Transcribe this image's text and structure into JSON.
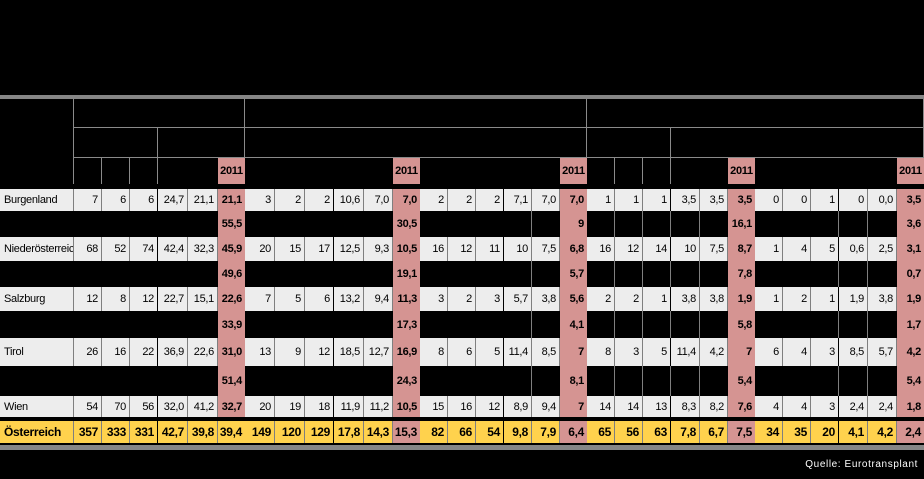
{
  "header": {
    "year_label": "2011",
    "group_count": 5,
    "note": "header captions blacked out in source image"
  },
  "footer": {
    "source": "Quelle: Eurotransplant"
  },
  "colors": {
    "highlight_pink": "#D59492",
    "total_yellow": "#FFD24D",
    "row_light": "#EDEDED",
    "rule_gray": "#868686",
    "grid_gray": "#7f7f7f",
    "background": "#000000"
  },
  "table": {
    "row_labels": [
      "Burgenland",
      "Niederösterreich",
      "Salzburg",
      "Tirol",
      "Wien",
      "Österreich"
    ],
    "rows": [
      {
        "type": "state",
        "label": "Burgenland",
        "values": [
          "7",
          "6",
          "6",
          "24,7",
          "21,1",
          "21,1",
          "3",
          "2",
          "2",
          "10,6",
          "7,0",
          "7,0",
          "2",
          "2",
          "2",
          "7,1",
          "7,0",
          "7,0",
          "1",
          "1",
          "1",
          "3,5",
          "3,5",
          "3,5",
          "0",
          "0",
          "1",
          "0",
          "0,0",
          "3,5"
        ]
      },
      {
        "type": "hidden",
        "label": "",
        "pink_values": [
          "55,5",
          "30,5",
          "9",
          "16,1",
          "3,6"
        ]
      },
      {
        "type": "state",
        "label": "Niederösterreich",
        "values": [
          "68",
          "52",
          "74",
          "42,4",
          "32,3",
          "45,9",
          "20",
          "15",
          "17",
          "12,5",
          "9,3",
          "10,5",
          "16",
          "12",
          "11",
          "10",
          "7,5",
          "6,8",
          "16",
          "12",
          "14",
          "10",
          "7,5",
          "8,7",
          "1",
          "4",
          "5",
          "0,6",
          "2,5",
          "3,1"
        ]
      },
      {
        "type": "hidden",
        "label": "",
        "pink_values": [
          "49,6",
          "19,1",
          "5,7",
          "7,8",
          "0,7"
        ]
      },
      {
        "type": "state",
        "label": "Salzburg",
        "values": [
          "12",
          "8",
          "12",
          "22,7",
          "15,1",
          "22,6",
          "7",
          "5",
          "6",
          "13,2",
          "9,4",
          "11,3",
          "3",
          "2",
          "3",
          "5,7",
          "3,8",
          "5,6",
          "2",
          "2",
          "1",
          "3,8",
          "3,8",
          "1,9",
          "1",
          "2",
          "1",
          "1,9",
          "3,8",
          "1,9"
        ]
      },
      {
        "type": "hidden",
        "label": "",
        "pink_values": [
          "33,9",
          "17,3",
          "4,1",
          "5,8",
          "1,7"
        ]
      },
      {
        "type": "state",
        "label": "Tirol",
        "values": [
          "26",
          "16",
          "22",
          "36,9",
          "22,6",
          "31,0",
          "13",
          "9",
          "12",
          "18,5",
          "12,7",
          "16,9",
          "8",
          "6",
          "5",
          "11,4",
          "8,5",
          "7",
          "8",
          "3",
          "5",
          "11,4",
          "4,2",
          "7",
          "6",
          "4",
          "3",
          "8,5",
          "5,7",
          "4,2"
        ]
      },
      {
        "type": "hidden",
        "label": "",
        "pink_values": [
          "51,4",
          "24,3",
          "8,1",
          "5,4",
          "5,4"
        ]
      },
      {
        "type": "state",
        "label": "Wien",
        "values": [
          "54",
          "70",
          "56",
          "32,0",
          "41,2",
          "32,7",
          "20",
          "19",
          "18",
          "11,9",
          "11,2",
          "10,5",
          "15",
          "16",
          "12",
          "8,9",
          "9,4",
          "7",
          "14",
          "14",
          "13",
          "8,3",
          "8,2",
          "7,6",
          "4",
          "4",
          "3",
          "2,4",
          "2,4",
          "1,8"
        ]
      },
      {
        "type": "total",
        "label": "Österreich",
        "values": [
          "357",
          "333",
          "331",
          "42,7",
          "39,8",
          "39,4",
          "149",
          "120",
          "129",
          "17,8",
          "14,3",
          "15,3",
          "82",
          "66",
          "54",
          "9,8",
          "7,9",
          "6,4",
          "65",
          "56",
          "63",
          "7,8",
          "6,7",
          "7,5",
          "34",
          "35",
          "20",
          "4,1",
          "4,2",
          "2,4"
        ]
      }
    ]
  }
}
